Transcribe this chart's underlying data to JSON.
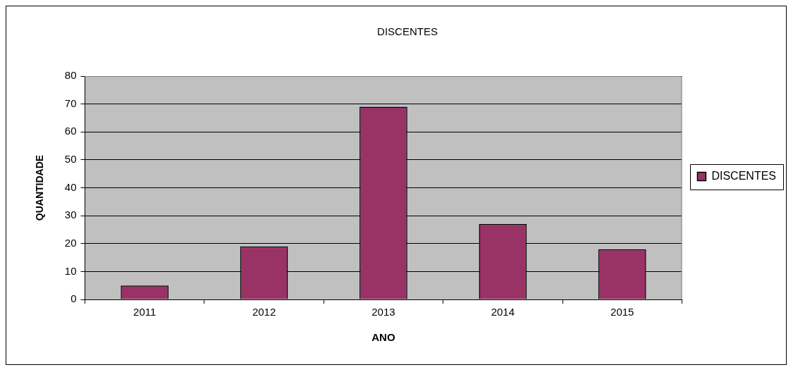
{
  "chart_data": {
    "type": "bar",
    "title": "DISCENTES",
    "xlabel": "ANO",
    "ylabel": "QUANTIDADE",
    "categories": [
      "2011",
      "2012",
      "2013",
      "2014",
      "2015"
    ],
    "series": [
      {
        "name": "DISCENTES",
        "color": "#993366",
        "values": [
          5,
          19,
          69,
          27,
          18
        ]
      }
    ],
    "ylim": [
      0,
      80
    ],
    "yticks": [
      0,
      10,
      20,
      30,
      40,
      50,
      60,
      70,
      80
    ],
    "grid": "y",
    "legend": "right"
  }
}
